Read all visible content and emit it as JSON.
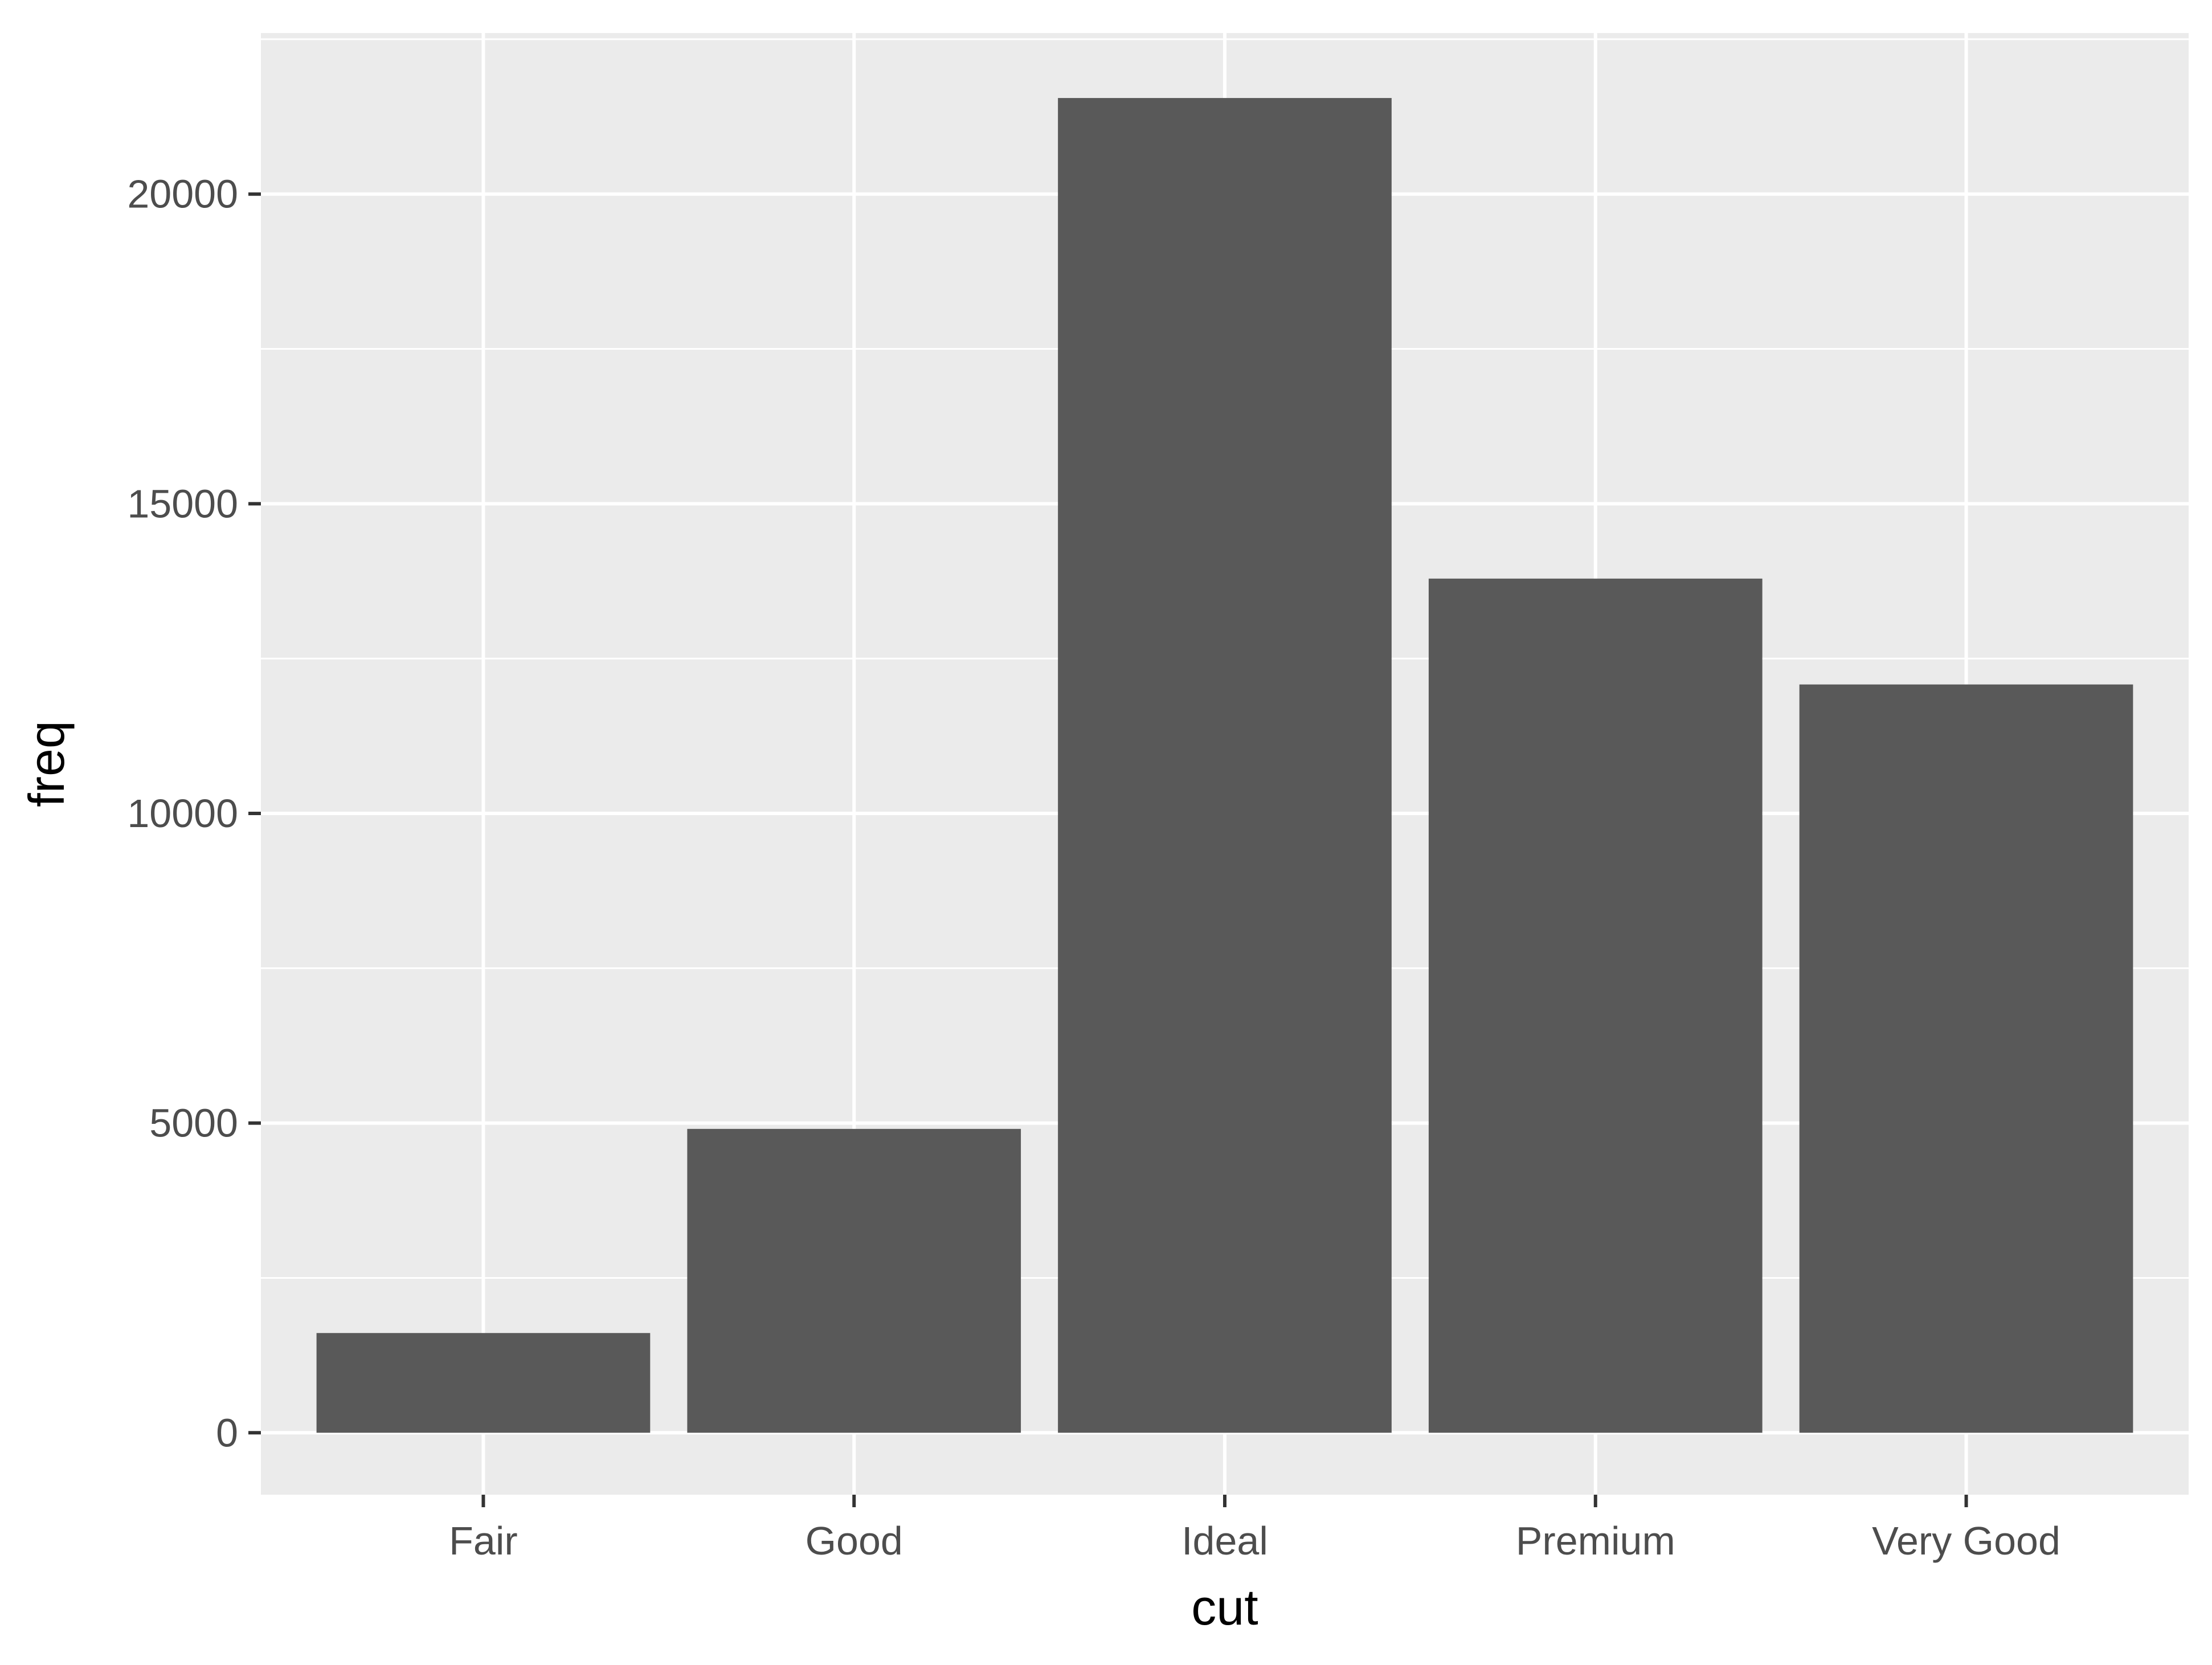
{
  "chart_data": {
    "type": "bar",
    "categories": [
      "Fair",
      "Good",
      "Ideal",
      "Premium",
      "Very Good"
    ],
    "values": [
      1610,
      4906,
      21551,
      13791,
      12082
    ],
    "title": "",
    "xlabel": "cut",
    "ylabel": "freq",
    "ylim": [
      -1000,
      22600
    ],
    "yticks": [
      0,
      5000,
      10000,
      15000,
      20000
    ],
    "ytick_labels": [
      "0",
      "5000",
      "10000",
      "15000",
      "20000"
    ],
    "grid": true,
    "legend": "none",
    "colors": {
      "panel_background": "#ebebeb",
      "gridline": "#ffffff",
      "bar_fill": "#595959",
      "tick_text": "#4d4d4d",
      "axis_tick": "#333333",
      "title_text": "#000000"
    }
  }
}
